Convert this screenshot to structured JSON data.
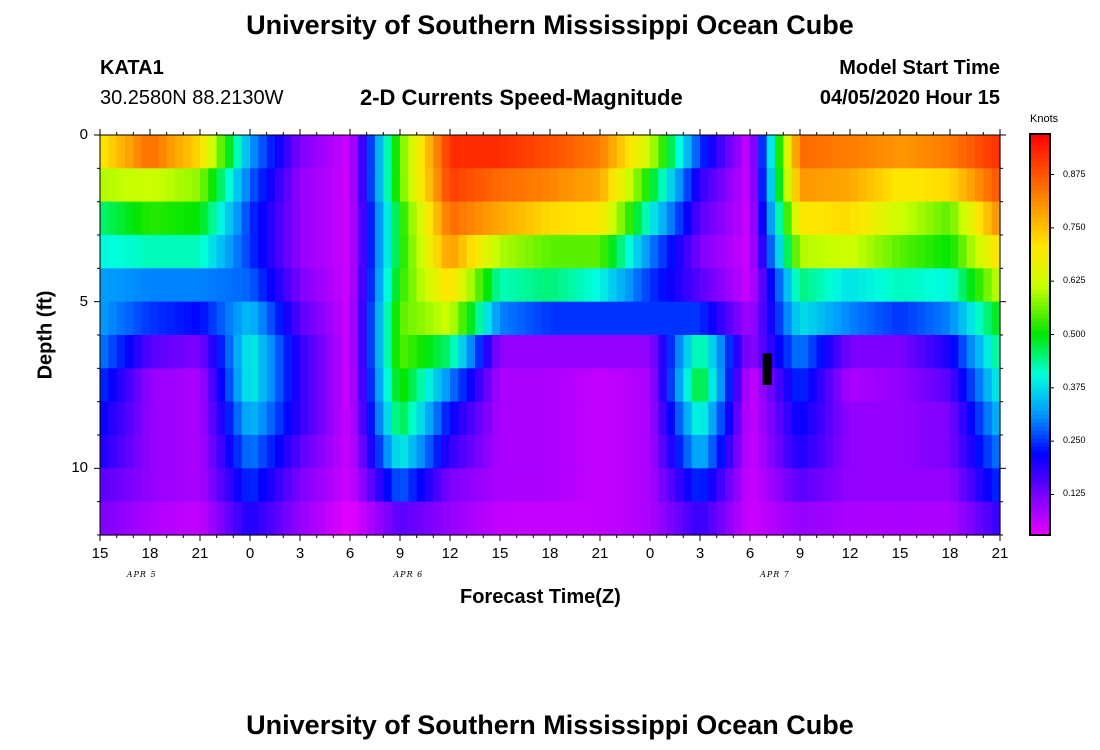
{
  "header": {
    "title": "University of Southern Mississippi Ocean Cube",
    "footer_title": "University of Southern Mississippi Ocean Cube",
    "station_id": "KATA1",
    "station_coords": "30.2580N 88.2130W",
    "plot_title": "2-D Currents Speed-Magnitude",
    "model_label": "Model Start Time",
    "model_time": "04/05/2020 Hour 15"
  },
  "chart_data": {
    "type": "heatmap",
    "title": "2-D Currents Speed-Magnitude",
    "xlabel": "Forecast Time(Z)",
    "ylabel": "Depth (ft)",
    "x_tick_labels": [
      "15",
      "18",
      "21",
      "0",
      "3",
      "6",
      "9",
      "12",
      "15",
      "18",
      "21",
      "0",
      "3",
      "6",
      "9",
      "12",
      "15",
      "18",
      "21"
    ],
    "date_labels": [
      "APR 5",
      "APR 6",
      "APR 7"
    ],
    "y_tick_labels": [
      "0",
      "5",
      "10"
    ],
    "ylim": [
      0,
      12
    ],
    "xlim_hours": [
      0,
      54
    ],
    "colorbar": {
      "title": "Knots",
      "labels": [
        "0.125",
        "0.250",
        "0.375",
        "0.500",
        "0.625",
        "0.750",
        "0.875"
      ],
      "range": [
        0.03,
        0.97
      ]
    },
    "depth_ft": [
      0,
      1,
      2,
      3,
      4,
      5,
      6,
      7,
      8,
      9,
      10,
      11
    ],
    "series": [
      {
        "name": "0 ft",
        "values": [
          0.7,
          0.85,
          0.72,
          0.32,
          0.12,
          0.05,
          0.55,
          0.92,
          0.92,
          0.88,
          0.83,
          0.62,
          0.25,
          0.05,
          0.85,
          0.83,
          0.8,
          0.83,
          0.92
        ]
      },
      {
        "name": "1 ft",
        "values": [
          0.6,
          0.62,
          0.58,
          0.28,
          0.1,
          0.05,
          0.55,
          0.9,
          0.85,
          0.82,
          0.78,
          0.5,
          0.18,
          0.05,
          0.8,
          0.78,
          0.7,
          0.72,
          0.88
        ]
      },
      {
        "name": "2 ft",
        "values": [
          0.45,
          0.52,
          0.5,
          0.25,
          0.1,
          0.05,
          0.5,
          0.85,
          0.78,
          0.72,
          0.7,
          0.4,
          0.15,
          0.05,
          0.7,
          0.72,
          0.62,
          0.55,
          0.82
        ]
      },
      {
        "name": "3 ft",
        "values": [
          0.4,
          0.42,
          0.42,
          0.25,
          0.1,
          0.05,
          0.5,
          0.8,
          0.6,
          0.55,
          0.55,
          0.3,
          0.12,
          0.05,
          0.6,
          0.62,
          0.55,
          0.5,
          0.72
        ]
      },
      {
        "name": "4 ft",
        "values": [
          0.32,
          0.3,
          0.3,
          0.28,
          0.12,
          0.05,
          0.52,
          0.72,
          0.42,
          0.45,
          0.4,
          0.25,
          0.15,
          0.05,
          0.45,
          0.38,
          0.42,
          0.4,
          0.62
        ]
      },
      {
        "name": "5 ft",
        "values": [
          0.32,
          0.25,
          0.22,
          0.35,
          0.15,
          0.05,
          0.55,
          0.62,
          0.3,
          0.25,
          0.25,
          0.25,
          0.25,
          0.08,
          0.38,
          0.3,
          0.25,
          0.3,
          0.5
        ]
      },
      {
        "name": "6 ft",
        "values": [
          0.3,
          0.15,
          0.12,
          0.4,
          0.18,
          0.05,
          0.55,
          0.45,
          0.1,
          0.1,
          0.1,
          0.1,
          0.45,
          0.1,
          0.3,
          0.12,
          0.12,
          0.2,
          0.45
        ]
      },
      {
        "name": "7 ft",
        "values": [
          0.25,
          0.1,
          0.08,
          0.4,
          0.18,
          0.05,
          0.52,
          0.3,
          0.08,
          0.08,
          0.06,
          0.08,
          0.5,
          0.05,
          0.25,
          0.08,
          0.1,
          0.15,
          0.4
        ]
      },
      {
        "name": "8 ft",
        "values": [
          0.22,
          0.1,
          0.08,
          0.35,
          0.18,
          0.05,
          0.48,
          0.22,
          0.08,
          0.08,
          0.06,
          0.08,
          0.42,
          0.05,
          0.22,
          0.1,
          0.1,
          0.12,
          0.35
        ]
      },
      {
        "name": "9 ft",
        "values": [
          0.2,
          0.1,
          0.08,
          0.3,
          0.15,
          0.05,
          0.4,
          0.18,
          0.08,
          0.08,
          0.06,
          0.08,
          0.35,
          0.05,
          0.2,
          0.1,
          0.1,
          0.12,
          0.3
        ]
      },
      {
        "name": "10 ft",
        "values": [
          0.15,
          0.1,
          0.08,
          0.25,
          0.12,
          0.05,
          0.28,
          0.12,
          0.08,
          0.08,
          0.06,
          0.08,
          0.25,
          0.05,
          0.15,
          0.1,
          0.1,
          0.1,
          0.25
        ]
      },
      {
        "name": "11 ft",
        "values": [
          0.12,
          0.08,
          0.06,
          0.2,
          0.1,
          0.03,
          0.15,
          0.1,
          0.06,
          0.06,
          0.06,
          0.08,
          0.18,
          0.05,
          0.1,
          0.08,
          0.08,
          0.08,
          0.18
        ]
      }
    ],
    "gap_cell": {
      "time_hours": 40,
      "depth_ft": 7,
      "label": "no data"
    }
  }
}
